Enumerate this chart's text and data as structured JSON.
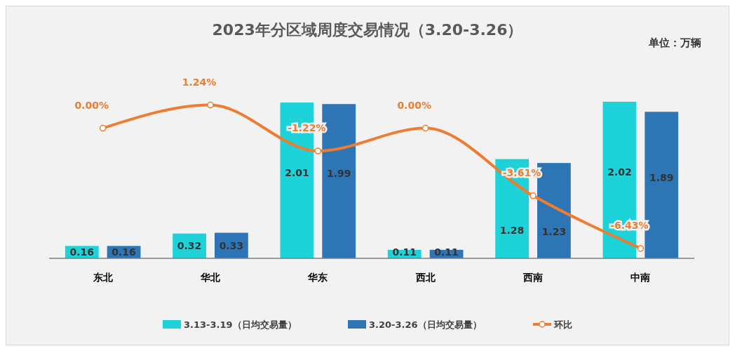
{
  "chart_data": {
    "type": "bar",
    "title": "2023年分区域周度交易情况（3.20-3.26）",
    "annotations": [
      "单位：万辆"
    ],
    "categories": [
      "东北",
      "华北",
      "华东",
      "西北",
      "西南",
      "中南"
    ],
    "series": [
      {
        "name": "3.13-3.19（日均交易量）",
        "color": "#1dd3d9",
        "values": [
          0.16,
          0.32,
          2.01,
          0.11,
          1.28,
          2.02
        ]
      },
      {
        "name": "3.20-3.26（日均交易量）",
        "color": "#2e75b6",
        "values": [
          0.16,
          0.33,
          1.99,
          0.11,
          1.23,
          1.89
        ]
      },
      {
        "name": "环比",
        "type": "line",
        "axis": "y2",
        "color": "#ed7d31",
        "marker": "circle",
        "values": [
          0.0,
          1.24,
          -1.22,
          0.0,
          -3.61,
          -6.43
        ],
        "value_labels": [
          "0.00%",
          "1.24%",
          "-1.22%",
          "0.00%",
          "-3.61%",
          "-6.43%"
        ]
      }
    ],
    "data_labels": true,
    "legend": "bottom",
    "tick_labels": "x"
  }
}
